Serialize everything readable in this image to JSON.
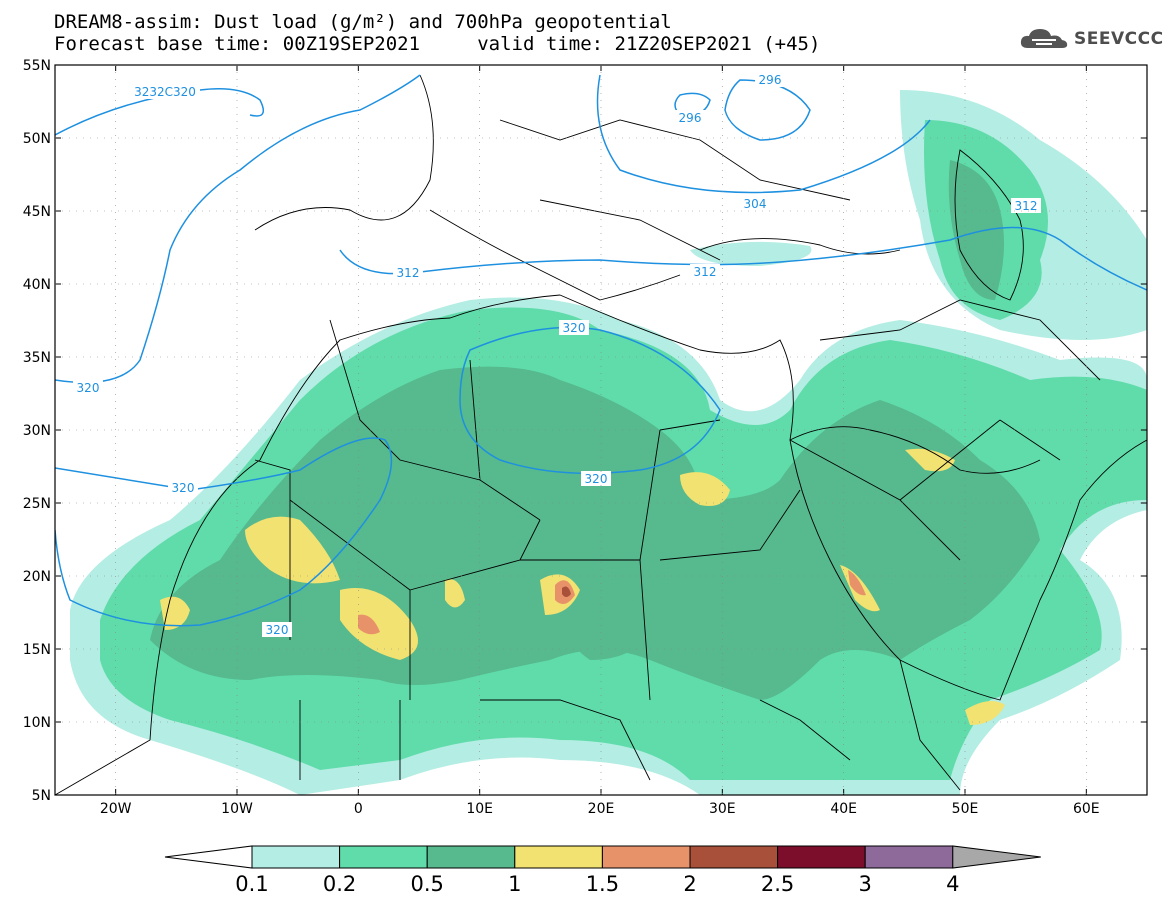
{
  "title_line1": "DREAM8-assim: Dust load (g/m²) and 700hPa geopotential",
  "title_line2": "Forecast base time: 00Z19SEP2021     valid time: 21Z20SEP2021 (+45)",
  "logo": {
    "text": "SEEVCCC",
    "icon": "cloud-icon"
  },
  "map": {
    "lon_range": [
      -25,
      65
    ],
    "lat_range": [
      5,
      55
    ],
    "lat_ticks": [
      "5N",
      "10N",
      "15N",
      "20N",
      "25N",
      "30N",
      "35N",
      "40N",
      "45N",
      "50N",
      "55N"
    ],
    "lon_ticks": [
      "20W",
      "10W",
      "0",
      "10E",
      "20E",
      "30E",
      "40E",
      "50E",
      "60E"
    ]
  },
  "contour_labels": [
    "3232C320",
    "296",
    "296",
    "304",
    "312",
    "312",
    "312",
    "320",
    "320",
    "320",
    "320",
    "320"
  ],
  "colorbar": {
    "labels": [
      "0.1",
      "0.2",
      "0.5",
      "1",
      "1.5",
      "2",
      "2.5",
      "3",
      "4"
    ],
    "colors": [
      "#ffffff",
      "#b4ede3",
      "#5fdcaa",
      "#57b98e",
      "#f2e271",
      "#e8926a",
      "#a8503a",
      "#7c0e2c",
      "#8e6a9b",
      "#a8a8a8"
    ]
  }
}
